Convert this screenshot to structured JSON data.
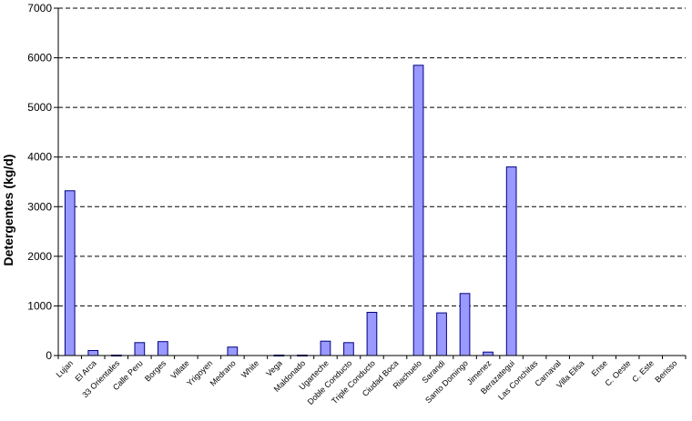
{
  "chart_data": {
    "type": "bar",
    "title": "",
    "xlabel": "",
    "ylabel": "Detergentes (kg/d)",
    "ylim": [
      0,
      7000
    ],
    "yticks": [
      0,
      1000,
      2000,
      3000,
      4000,
      5000,
      6000,
      7000
    ],
    "grid": "horizontal-dashed",
    "bar_color": "#9999ff",
    "bar_edge_color": "#000080",
    "categories": [
      "Lujan",
      "El Arca",
      "33 Orientales",
      "Calle Peru",
      "Borges",
      "Villate",
      "Yrigoyen",
      "Medrano",
      "White",
      "Vega",
      "Maldonado",
      "Ugarteche",
      "Doble Conducto",
      "Triple Conducto",
      "Ciudad Boca",
      "Riachuelo",
      "Sarandi",
      "Santo Domingo",
      "Jimenez",
      "Berazategui",
      "Las Conchitas",
      "Carnaval",
      "Villa Elisa",
      "Ense",
      "C. Oeste",
      "C. Este",
      "Berisso"
    ],
    "values": [
      3320,
      100,
      10,
      260,
      280,
      0,
      0,
      170,
      0,
      10,
      10,
      290,
      260,
      870,
      0,
      5850,
      860,
      1250,
      70,
      3800,
      0,
      0,
      0,
      0,
      0,
      0,
      0
    ]
  }
}
